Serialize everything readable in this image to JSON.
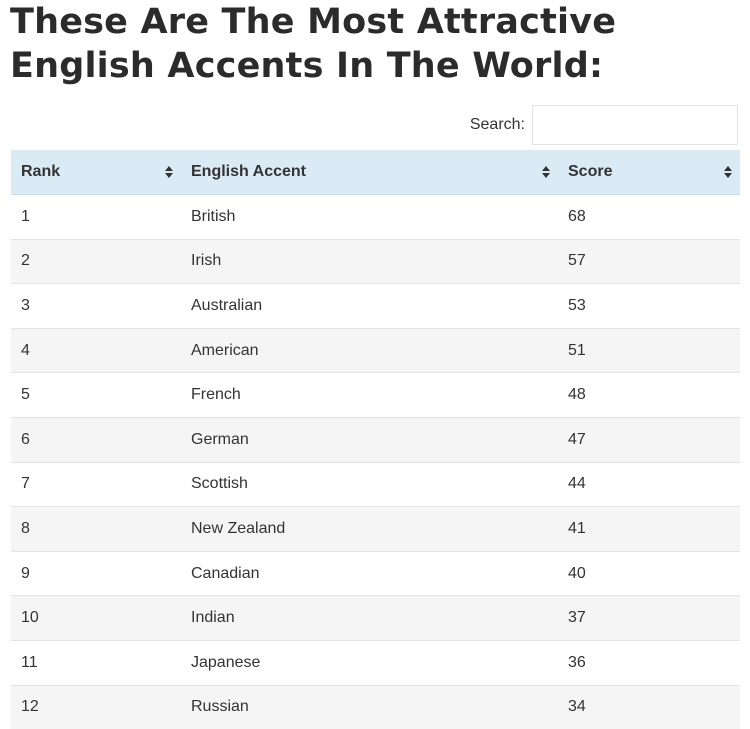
{
  "page": {
    "title_line1": "These Are The Most Attractive",
    "title_line2": "English Accents In The World:"
  },
  "search": {
    "label": "Search:",
    "value": "",
    "placeholder": ""
  },
  "table": {
    "columns": [
      "Rank",
      "English Accent",
      "Score"
    ],
    "rows": [
      {
        "rank": "1",
        "accent": "British",
        "score": "68"
      },
      {
        "rank": "2",
        "accent": "Irish",
        "score": "57"
      },
      {
        "rank": "3",
        "accent": "Australian",
        "score": "53"
      },
      {
        "rank": "4",
        "accent": "American",
        "score": "51"
      },
      {
        "rank": "5",
        "accent": "French",
        "score": "48"
      },
      {
        "rank": "6",
        "accent": "German",
        "score": "47"
      },
      {
        "rank": "7",
        "accent": "Scottish",
        "score": "44"
      },
      {
        "rank": "8",
        "accent": "New Zealand",
        "score": "41"
      },
      {
        "rank": "9",
        "accent": "Canadian",
        "score": "40"
      },
      {
        "rank": "10",
        "accent": "Indian",
        "score": "37"
      },
      {
        "rank": "11",
        "accent": "Japanese",
        "score": "36"
      },
      {
        "rank": "12",
        "accent": "Russian",
        "score": "34"
      }
    ]
  },
  "colors": {
    "header_background": "#dbebf6",
    "striped_row": "#f5f5f5",
    "text": "#333333"
  },
  "icons": {
    "sort": "sort-both-icon"
  }
}
